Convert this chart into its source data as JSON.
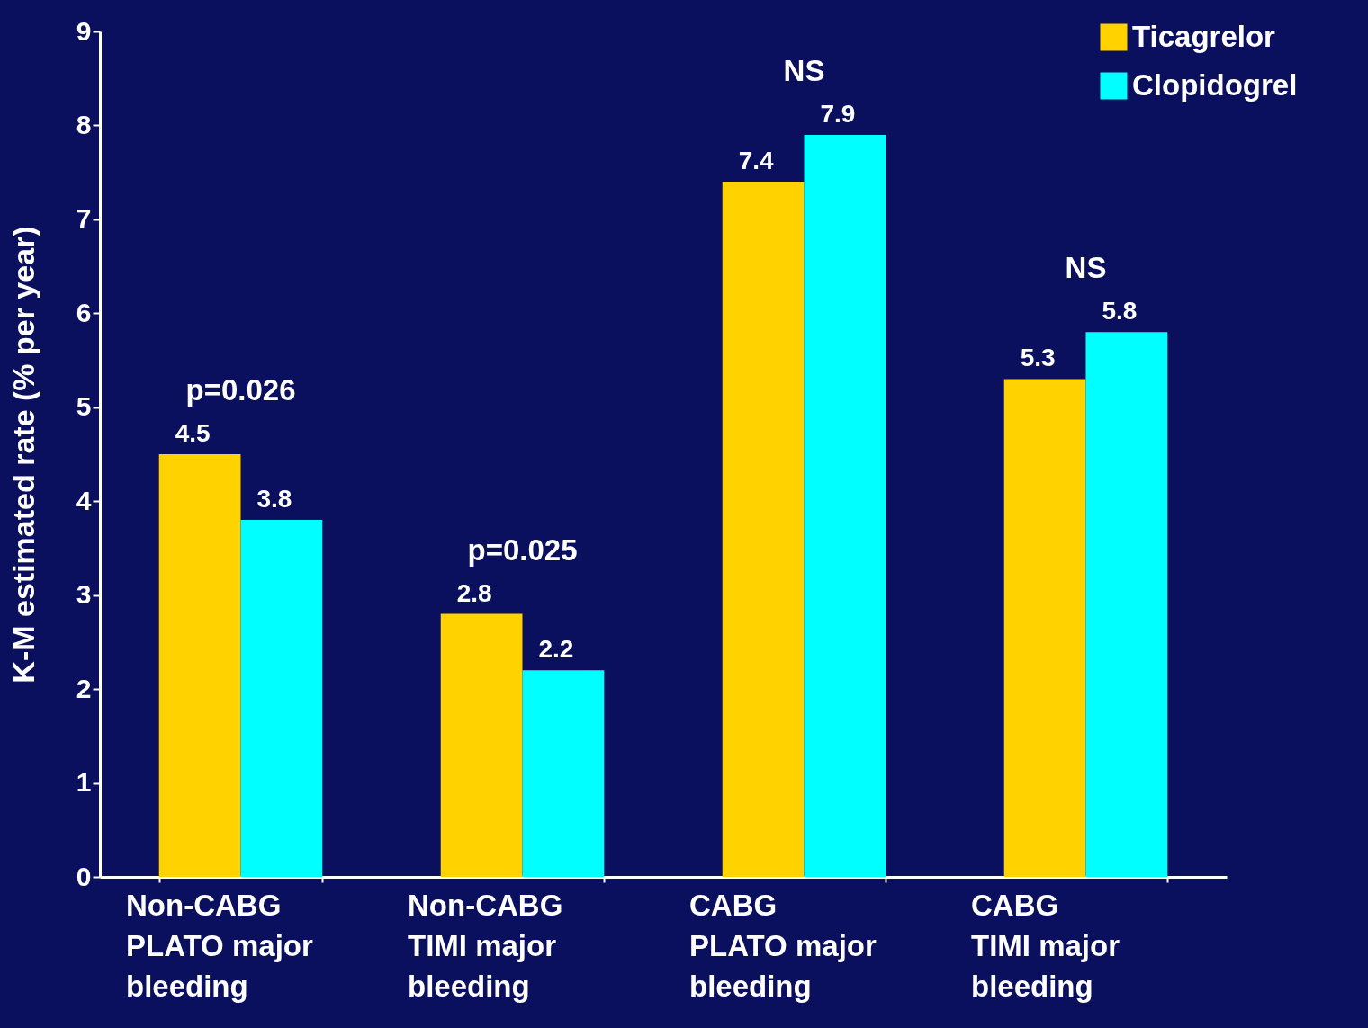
{
  "chart_data": {
    "type": "bar",
    "ylabel": "K-M estimated rate  (% per year)",
    "categories": [
      "Non-CABG\nPLATO major\nbleeding",
      "Non-CABG\nTIMI major\nbleeding",
      "CABG\nPLATO major\nbleeding",
      "CABG\nTIMI major\nbleeding"
    ],
    "series": [
      {
        "name": "Ticagrelor",
        "color": "#ffd200",
        "values": [
          4.5,
          2.8,
          7.4,
          5.3
        ]
      },
      {
        "name": "Clopidogrel",
        "color": "#00ffff",
        "values": [
          3.8,
          2.2,
          7.9,
          5.8
        ]
      }
    ],
    "ylim": [
      0,
      9
    ],
    "yticks": [
      0,
      1,
      2,
      3,
      4,
      5,
      6,
      7,
      8,
      9
    ],
    "grid": false,
    "legend": "top right",
    "data_labels": true,
    "annotations": [
      "p=0.026",
      "p=0.025",
      "NS",
      "NS"
    ]
  }
}
